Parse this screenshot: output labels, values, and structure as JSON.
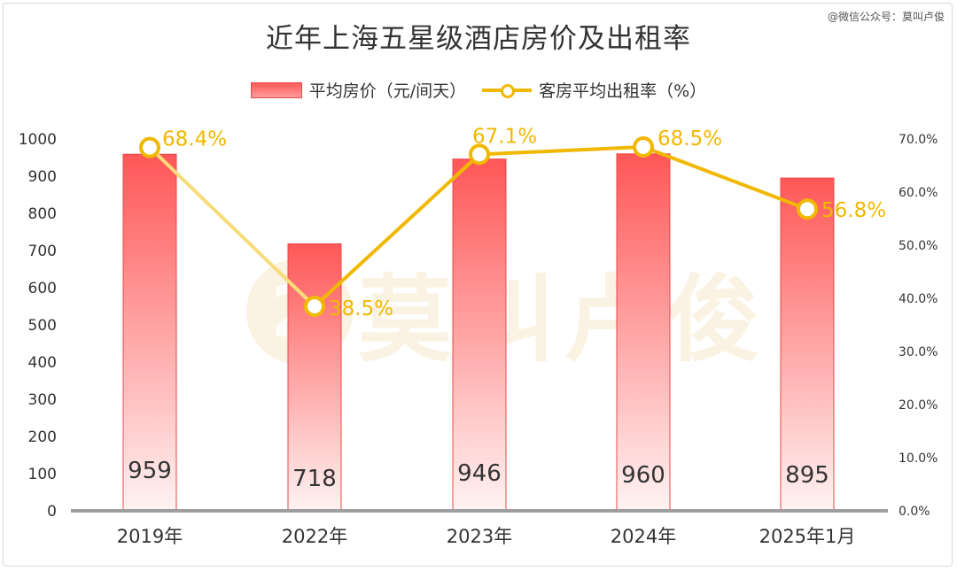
{
  "title": "近年上海五星级酒店房价及出租率",
  "credit": "@微信公众号：莫叫卢俊",
  "watermark": {
    "logo": "2",
    "text": "莫叫卢俊"
  },
  "chart_data": {
    "type": "bar",
    "title": "近年上海五星级酒店房价及出租率",
    "categories": [
      "2019年",
      "2022年",
      "2023年",
      "2024年",
      "2025年1月"
    ],
    "series": [
      {
        "name": "平均房价（元/间天）",
        "type": "bar",
        "axis": "left",
        "values": [
          959,
          718,
          946,
          960,
          895
        ],
        "labels": [
          "959",
          "718",
          "946",
          "960",
          "895"
        ]
      },
      {
        "name": "客房平均出租率（%）",
        "type": "line",
        "axis": "right",
        "values": [
          68.4,
          38.5,
          67.1,
          68.5,
          56.8
        ],
        "labels": [
          "68.4%",
          "38.5%",
          "67.1%",
          "68.5%",
          "56.8%"
        ]
      }
    ],
    "y_left": {
      "min": 0,
      "max": 1000,
      "ticks": [
        "0",
        "100",
        "200",
        "300",
        "400",
        "500",
        "600",
        "700",
        "800",
        "900",
        "1000"
      ]
    },
    "y_right": {
      "min": 0,
      "max": 70,
      "ticks": [
        "0.0%",
        "10.0%",
        "20.0%",
        "30.0%",
        "40.0%",
        "50.0%",
        "60.0%",
        "70.0%"
      ]
    },
    "grid": false,
    "legend": "top",
    "colors": {
      "bar_top": "#ff5757",
      "bar_bottom": "#fff3f3",
      "bar_edge": "#e84848",
      "line": "#f1b800",
      "line_faded": "#f7dc7a",
      "axis": "#9e9e9e"
    }
  }
}
